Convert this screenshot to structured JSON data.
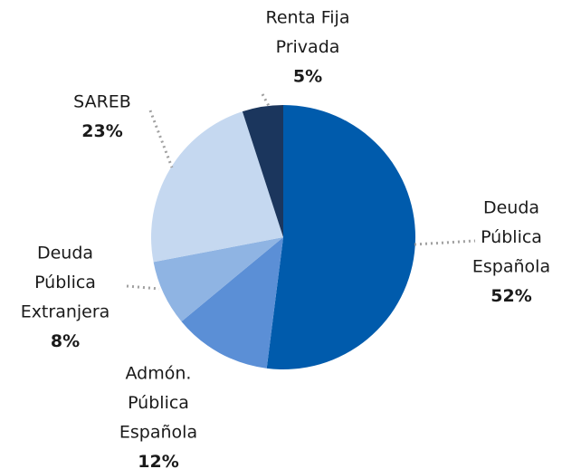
{
  "chart_data": {
    "type": "pie",
    "categories": [
      [
        "Deuda",
        "Pública",
        "Española"
      ],
      [
        "Admón.",
        "Pública",
        "Española"
      ],
      [
        "Deuda",
        "Pública",
        "Extranjera"
      ],
      [
        "SAREB"
      ],
      [
        "Renta Fija",
        "Privada"
      ]
    ],
    "values": [
      52,
      12,
      8,
      23,
      5
    ],
    "value_labels": [
      "52%",
      "12%",
      "8%",
      "23%",
      "5%"
    ],
    "colors": [
      "#005bac",
      "#5b8fd6",
      "#8fb4e3",
      "#c5d8f0",
      "#1b365d"
    ]
  }
}
